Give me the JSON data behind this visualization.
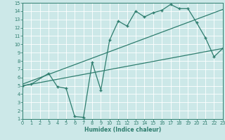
{
  "xlabel": "Humidex (Indice chaleur)",
  "bg_color": "#cce8e8",
  "grid_color": "#ffffff",
  "line_color": "#2e7d6e",
  "xmin": 0,
  "xmax": 23,
  "ymin": 1,
  "ymax": 15,
  "xticks": [
    0,
    1,
    2,
    3,
    4,
    5,
    6,
    7,
    8,
    9,
    10,
    11,
    12,
    13,
    14,
    15,
    16,
    17,
    18,
    19,
    20,
    21,
    22,
    23
  ],
  "yticks": [
    1,
    2,
    3,
    4,
    5,
    6,
    7,
    8,
    9,
    10,
    11,
    12,
    13,
    14,
    15
  ],
  "line1_x": [
    0,
    1,
    3,
    4,
    5,
    6,
    7,
    8,
    9,
    10,
    11,
    12,
    13,
    14,
    15,
    16,
    17,
    18,
    19,
    20,
    21,
    22,
    23
  ],
  "line1_y": [
    5.0,
    5.2,
    6.5,
    4.9,
    4.7,
    1.3,
    1.2,
    7.8,
    4.5,
    10.5,
    12.8,
    12.2,
    14.0,
    13.3,
    13.8,
    14.1,
    14.8,
    14.3,
    14.3,
    12.6,
    10.8,
    8.5,
    9.5
  ],
  "line2_x": [
    0,
    23
  ],
  "line2_y": [
    5.2,
    14.2
  ],
  "line3_x": [
    0,
    23
  ],
  "line3_y": [
    5.0,
    9.5
  ]
}
